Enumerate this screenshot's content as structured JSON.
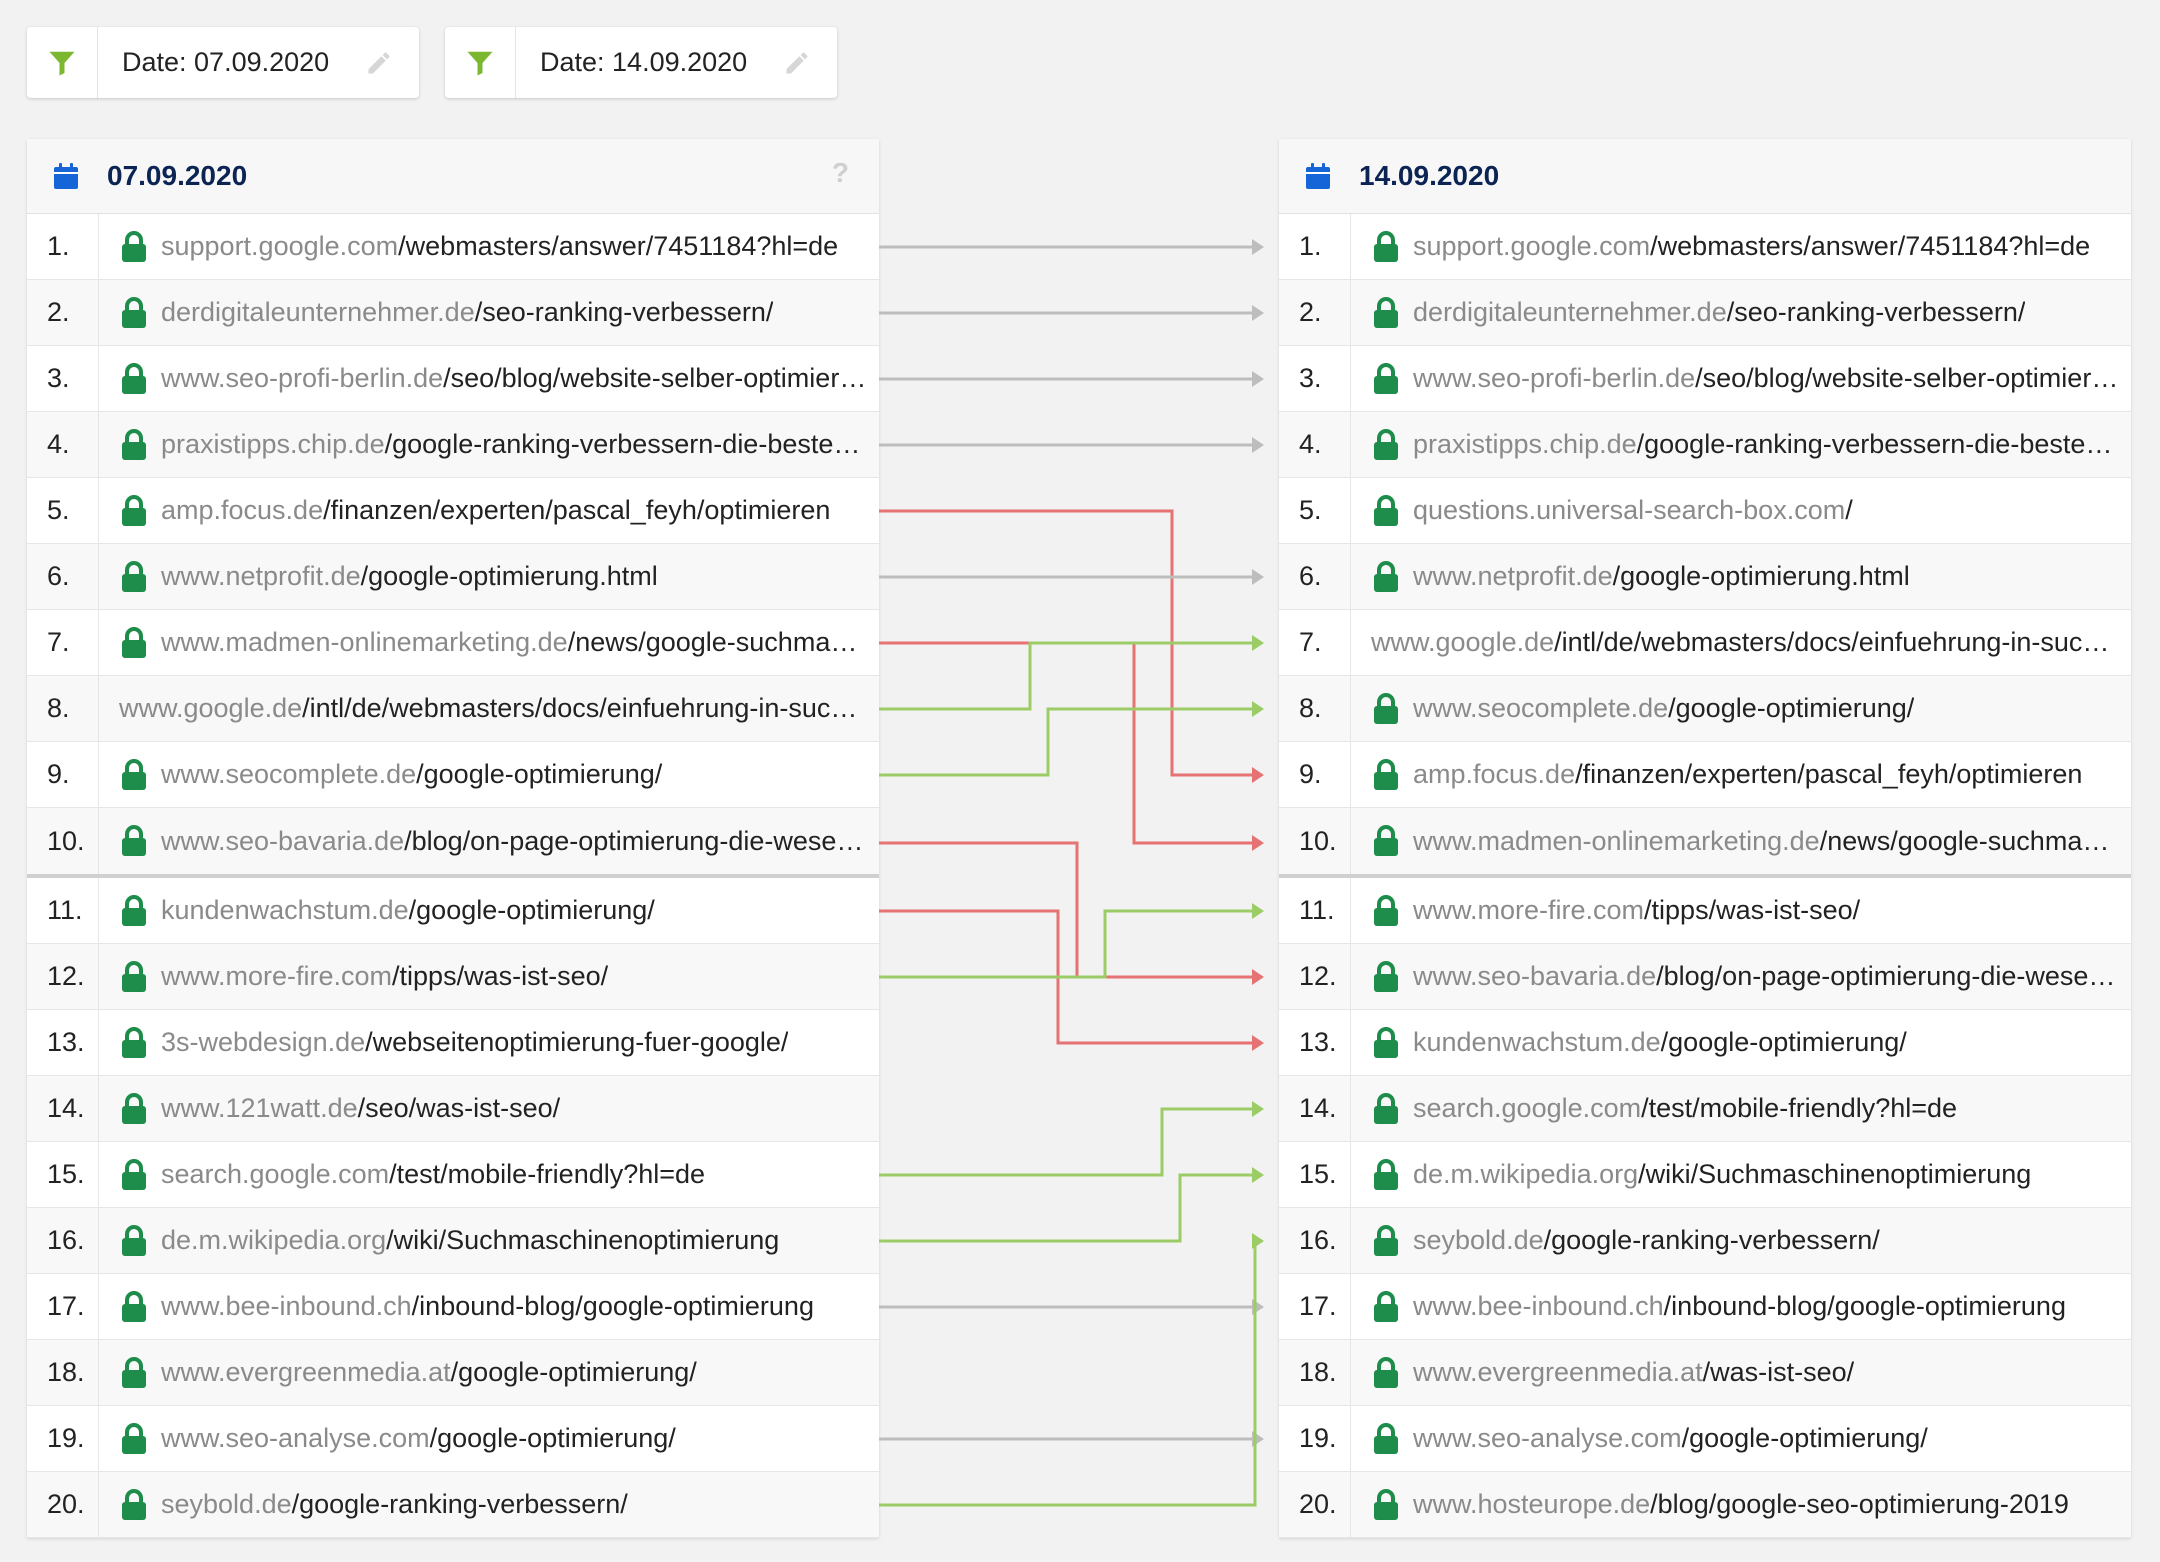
{
  "filters": [
    {
      "label": "Date: 07.09.2020"
    },
    {
      "label": "Date: 14.09.2020"
    }
  ],
  "left": {
    "date": "07.09.2020",
    "help": "?",
    "rows": [
      {
        "rank": "1.",
        "domain": "support.google.com",
        "path": "/webmasters/answer/7451184?hl=de",
        "secure": true
      },
      {
        "rank": "2.",
        "domain": "derdigitaleunternehmer.de",
        "path": "/seo-ranking-verbessern/",
        "secure": true
      },
      {
        "rank": "3.",
        "domain": "www.seo-profi-berlin.de",
        "path": "/seo/blog/website-selber-optimieren/",
        "secure": true
      },
      {
        "rank": "4.",
        "domain": "praxistipps.chip.de",
        "path": "/google-ranking-verbessern-die-besten-tipps",
        "secure": true
      },
      {
        "rank": "5.",
        "domain": "amp.focus.de",
        "path": "/finanzen/experten/pascal_feyh/optimieren",
        "secure": true
      },
      {
        "rank": "6.",
        "domain": "www.netprofit.de",
        "path": "/google-optimierung.html",
        "secure": true
      },
      {
        "rank": "7.",
        "domain": "www.madmen-onlinemarketing.de",
        "path": "/news/google-suchmaschinenoptimierung",
        "secure": true
      },
      {
        "rank": "8.",
        "domain": "www.google.de",
        "path": "/intl/de/webmasters/docs/einfuehrung-in-suchmaschinenoptimierung",
        "secure": false
      },
      {
        "rank": "9.",
        "domain": "www.seocomplete.de",
        "path": "/google-optimierung/",
        "secure": true
      },
      {
        "rank": "10.",
        "domain": "www.seo-bavaria.de",
        "path": "/blog/on-page-optimierung-die-wesentlichen",
        "secure": true
      },
      {
        "rank": "11.",
        "domain": "kundenwachstum.de",
        "path": "/google-optimierung/",
        "secure": true
      },
      {
        "rank": "12.",
        "domain": "www.more-fire.com",
        "path": "/tipps/was-ist-seo/",
        "secure": true
      },
      {
        "rank": "13.",
        "domain": "3s-webdesign.de",
        "path": "/webseitenoptimierung-fuer-google/",
        "secure": true
      },
      {
        "rank": "14.",
        "domain": "www.121watt.de",
        "path": "/seo/was-ist-seo/",
        "secure": true
      },
      {
        "rank": "15.",
        "domain": "search.google.com",
        "path": "/test/mobile-friendly?hl=de",
        "secure": true
      },
      {
        "rank": "16.",
        "domain": "de.m.wikipedia.org",
        "path": "/wiki/Suchmaschinenoptimierung",
        "secure": true
      },
      {
        "rank": "17.",
        "domain": "www.bee-inbound.ch",
        "path": "/inbound-blog/google-optimierung",
        "secure": true
      },
      {
        "rank": "18.",
        "domain": "www.evergreenmedia.at",
        "path": "/google-optimierung/",
        "secure": true
      },
      {
        "rank": "19.",
        "domain": "www.seo-analyse.com",
        "path": "/google-optimierung/",
        "secure": true
      },
      {
        "rank": "20.",
        "domain": "seybold.de",
        "path": "/google-ranking-verbessern/",
        "secure": true
      }
    ]
  },
  "right": {
    "date": "14.09.2020",
    "rows": [
      {
        "rank": "1.",
        "domain": "support.google.com",
        "path": "/webmasters/answer/7451184?hl=de",
        "secure": true
      },
      {
        "rank": "2.",
        "domain": "derdigitaleunternehmer.de",
        "path": "/seo-ranking-verbessern/",
        "secure": true
      },
      {
        "rank": "3.",
        "domain": "www.seo-profi-berlin.de",
        "path": "/seo/blog/website-selber-optimieren/",
        "secure": true
      },
      {
        "rank": "4.",
        "domain": "praxistipps.chip.de",
        "path": "/google-ranking-verbessern-die-besten-tipps",
        "secure": true
      },
      {
        "rank": "5.",
        "domain": "questions.universal-search-box.com",
        "path": "/",
        "secure": true
      },
      {
        "rank": "6.",
        "domain": "www.netprofit.de",
        "path": "/google-optimierung.html",
        "secure": true
      },
      {
        "rank": "7.",
        "domain": "www.google.de",
        "path": "/intl/de/webmasters/docs/einfuehrung-in-suchmaschinenoptimierung",
        "secure": false
      },
      {
        "rank": "8.",
        "domain": "www.seocomplete.de",
        "path": "/google-optimierung/",
        "secure": true
      },
      {
        "rank": "9.",
        "domain": "amp.focus.de",
        "path": "/finanzen/experten/pascal_feyh/optimieren",
        "secure": true
      },
      {
        "rank": "10.",
        "domain": "www.madmen-onlinemarketing.de",
        "path": "/news/google-suchmaschinenoptimierung",
        "secure": true
      },
      {
        "rank": "11.",
        "domain": "www.more-fire.com",
        "path": "/tipps/was-ist-seo/",
        "secure": true
      },
      {
        "rank": "12.",
        "domain": "www.seo-bavaria.de",
        "path": "/blog/on-page-optimierung-die-wesentlichen",
        "secure": true
      },
      {
        "rank": "13.",
        "domain": "kundenwachstum.de",
        "path": "/google-optimierung/",
        "secure": true
      },
      {
        "rank": "14.",
        "domain": "search.google.com",
        "path": "/test/mobile-friendly?hl=de",
        "secure": true
      },
      {
        "rank": "15.",
        "domain": "de.m.wikipedia.org",
        "path": "/wiki/Suchmaschinenoptimierung",
        "secure": true
      },
      {
        "rank": "16.",
        "domain": "seybold.de",
        "path": "/google-ranking-verbessern/",
        "secure": true
      },
      {
        "rank": "17.",
        "domain": "www.bee-inbound.ch",
        "path": "/inbound-blog/google-optimierung",
        "secure": true
      },
      {
        "rank": "18.",
        "domain": "www.evergreenmedia.at",
        "path": "/was-ist-seo/",
        "secure": true
      },
      {
        "rank": "19.",
        "domain": "www.seo-analyse.com",
        "path": "/google-optimierung/",
        "secure": true
      },
      {
        "rank": "20.",
        "domain": "www.hosteurope.de",
        "path": "/blog/google-seo-optimierung-2019",
        "secure": true
      }
    ]
  },
  "movements": [
    {
      "from": 1,
      "to": 1,
      "kind": "same"
    },
    {
      "from": 2,
      "to": 2,
      "kind": "same"
    },
    {
      "from": 3,
      "to": 3,
      "kind": "same"
    },
    {
      "from": 4,
      "to": 4,
      "kind": "same"
    },
    {
      "from": 5,
      "to": 9,
      "kind": "down"
    },
    {
      "from": 6,
      "to": 6,
      "kind": "same"
    },
    {
      "from": 7,
      "to": 10,
      "kind": "down"
    },
    {
      "from": 8,
      "to": 7,
      "kind": "up"
    },
    {
      "from": 9,
      "to": 8,
      "kind": "up"
    },
    {
      "from": 10,
      "to": 12,
      "kind": "down"
    },
    {
      "from": 11,
      "to": 13,
      "kind": "down"
    },
    {
      "from": 12,
      "to": 11,
      "kind": "up"
    },
    {
      "from": 15,
      "to": 14,
      "kind": "up"
    },
    {
      "from": 16,
      "to": 15,
      "kind": "up"
    },
    {
      "from": 17,
      "to": 17,
      "kind": "same"
    },
    {
      "from": 19,
      "to": 19,
      "kind": "same"
    },
    {
      "from": 20,
      "to": 16,
      "kind": "up"
    }
  ],
  "colors": {
    "same": "#bdbdbd",
    "down": "#e57373",
    "up": "#9ccc65",
    "lock": "#1e8c4a",
    "filter": "#7cb82f",
    "calendar": "#1565d8"
  }
}
